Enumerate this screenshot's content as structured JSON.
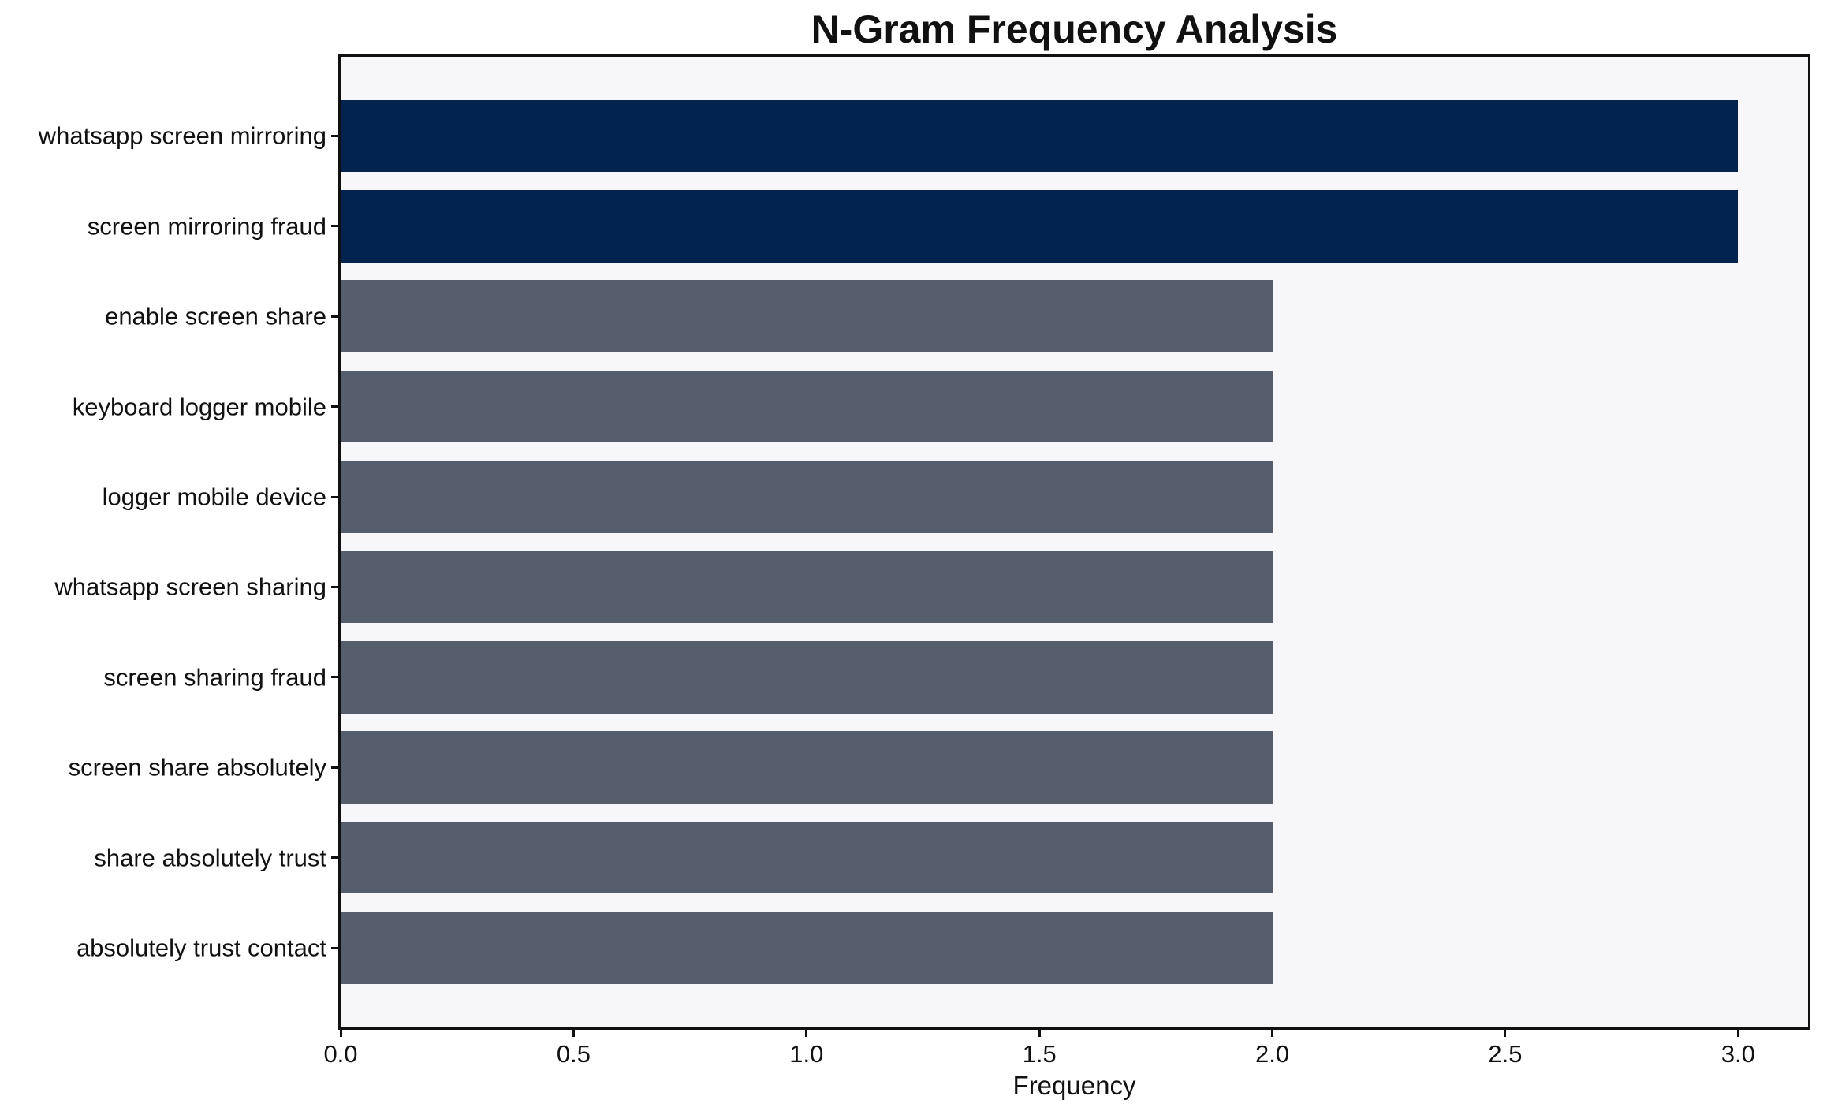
{
  "chart_data": {
    "type": "bar",
    "orientation": "horizontal",
    "title": "N-Gram Frequency Analysis",
    "xlabel": "Frequency",
    "ylabel": "",
    "categories": [
      "whatsapp screen mirroring",
      "screen mirroring fraud",
      "enable screen share",
      "keyboard logger mobile",
      "logger mobile device",
      "whatsapp screen sharing",
      "screen sharing fraud",
      "screen share absolutely",
      "share absolutely trust",
      "absolutely trust contact"
    ],
    "values": [
      3,
      3,
      2,
      2,
      2,
      2,
      2,
      2,
      2,
      2
    ],
    "bar_colors": [
      "#02234e",
      "#02234e",
      "#565d6d",
      "#565d6d",
      "#565d6d",
      "#565d6d",
      "#565d6d",
      "#565d6d",
      "#565d6d",
      "#565d6d"
    ],
    "xlim": [
      0,
      3.15
    ],
    "xtick_values": [
      0,
      0.5,
      1,
      1.5,
      2,
      2.5,
      3
    ],
    "xtick_labels": [
      "0.0",
      "0.5",
      "1.0",
      "1.5",
      "2.0",
      "2.5",
      "3.0"
    ],
    "grid": false,
    "legend": null,
    "colors": {
      "highlight_bar": "#02234e",
      "normal_bar": "#565d6d",
      "plot_background": "#f7f7f9",
      "frame": "#111111"
    }
  }
}
